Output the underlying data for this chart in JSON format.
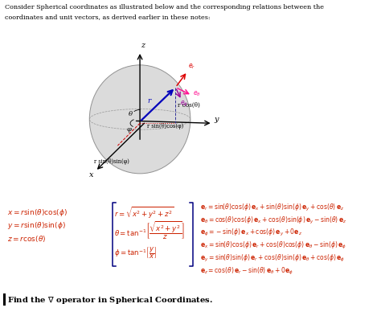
{
  "bg_color": "#ffffff",
  "title_line1": "Consider Spherical coordinates as illustrated below and the corresponding relations between the",
  "title_line2": "coordinates and unit vectors, as derived earlier in these notes:",
  "left_eqs": [
    "x = r\\sin(\\theta)\\cos(\\phi)",
    "y = r\\sin(\\theta)\\sin(\\phi)",
    "z = r\\cos(\\theta)"
  ],
  "mid_eq1": "r = \\sqrt{x^2 + y^2 + z^2}",
  "mid_eq2": "\\theta = \\tan^{-1}\\!\\left[\\frac{\\sqrt{x^2+y^2}}{z}\\right]",
  "mid_eq3": "\\phi = \\tan^{-1}\\!\\left[\\frac{y}{x}\\right]",
  "right_eqs": [
    "\\mathbf{e}_r = \\sin(\\theta)\\cos(\\phi)\\,\\mathbf{e}_x + \\sin(\\theta)\\sin(\\phi)\\,\\mathbf{e}_y + \\cos(\\theta)\\,\\mathbf{e}_z",
    "\\mathbf{e}_\\theta = \\cos(\\theta)\\cos(\\phi)\\,\\mathbf{e}_x + \\cos(\\theta)\\sin(\\phi)\\,\\mathbf{e}_y - \\sin(\\theta)\\,\\mathbf{e}_z",
    "\\mathbf{e}_\\phi = -\\sin(\\phi)\\,\\mathbf{e}_x + \\cos(\\phi)\\,\\mathbf{e}_y + 0\\mathbf{e}_z",
    "\\mathbf{e}_x = \\sin(\\theta)\\cos(\\phi)\\,\\mathbf{e}_r + \\cos(\\theta)\\cos(\\phi)\\,\\mathbf{e}_\\theta - \\sin(\\phi)\\,\\mathbf{e}_\\phi",
    "\\mathbf{e}_y = \\sin(\\theta)\\sin(\\phi)\\,\\mathbf{e}_r + \\cos(\\theta)\\sin(\\phi)\\,\\mathbf{e}_\\theta + \\cos(\\phi)\\,\\mathbf{e}_\\phi",
    "\\mathbf{e}_z = \\cos(\\theta)\\,\\mathbf{e}_r - \\sin(\\theta)\\,\\mathbf{e}_\\theta + 0\\mathbf{e}_\\phi"
  ],
  "footer_text": "Find the $\\nabla$ operator in Spherical Coordinates.",
  "eq_color": "#cc2200",
  "axis_color": "#000000",
  "sphere_color": "#d8d8d8",
  "blue_color": "#0000bb",
  "red_color": "#cc0000",
  "pink_color": "#ff1493",
  "purple_color": "#990099",
  "footer_color": "#000055"
}
